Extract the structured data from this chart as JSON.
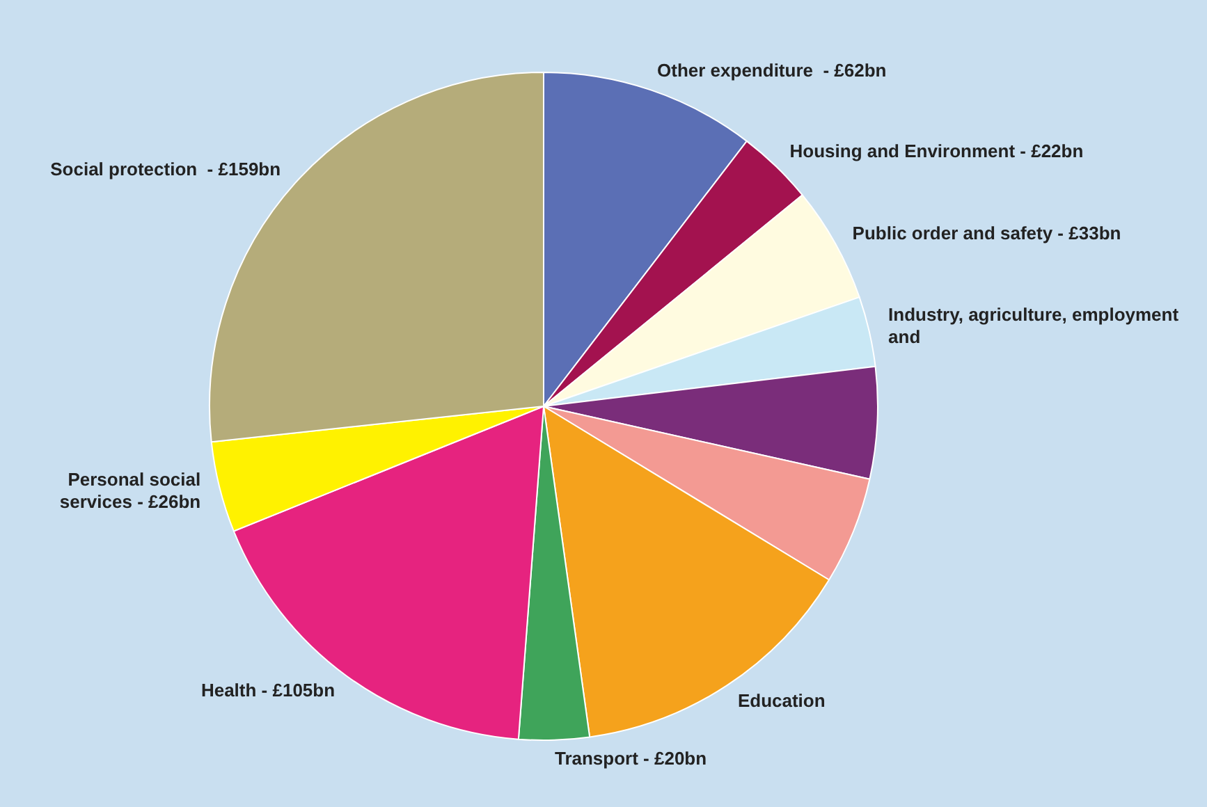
{
  "chart_data": {
    "type": "pie",
    "categories": [
      "Other expenditure  - £62bn",
      "Housing and Environment - £22bn",
      "Public order and safety - £33bn",
      "Industry, agriculture, employment and",
      null,
      null,
      "Education",
      "Transport - £20bn",
      "Health - £105bn",
      "Personal social services - £26bn",
      "Social protection  - £159bn"
    ],
    "values": [
      10.4,
      3.7,
      5.6,
      3.4,
      5.4,
      5.2,
      14.1,
      3.4,
      17.7,
      4.4,
      26.7
    ],
    "colors": [
      "#5b6fb5",
      "#a3124f",
      "#fffbe0",
      "#c9e8f5",
      "#7a2d7a",
      "#f39a93",
      "#f5a21c",
      "#3fa45a",
      "#e6237f",
      "#fff200",
      "#b5ac7a"
    ],
    "legend": false
  }
}
